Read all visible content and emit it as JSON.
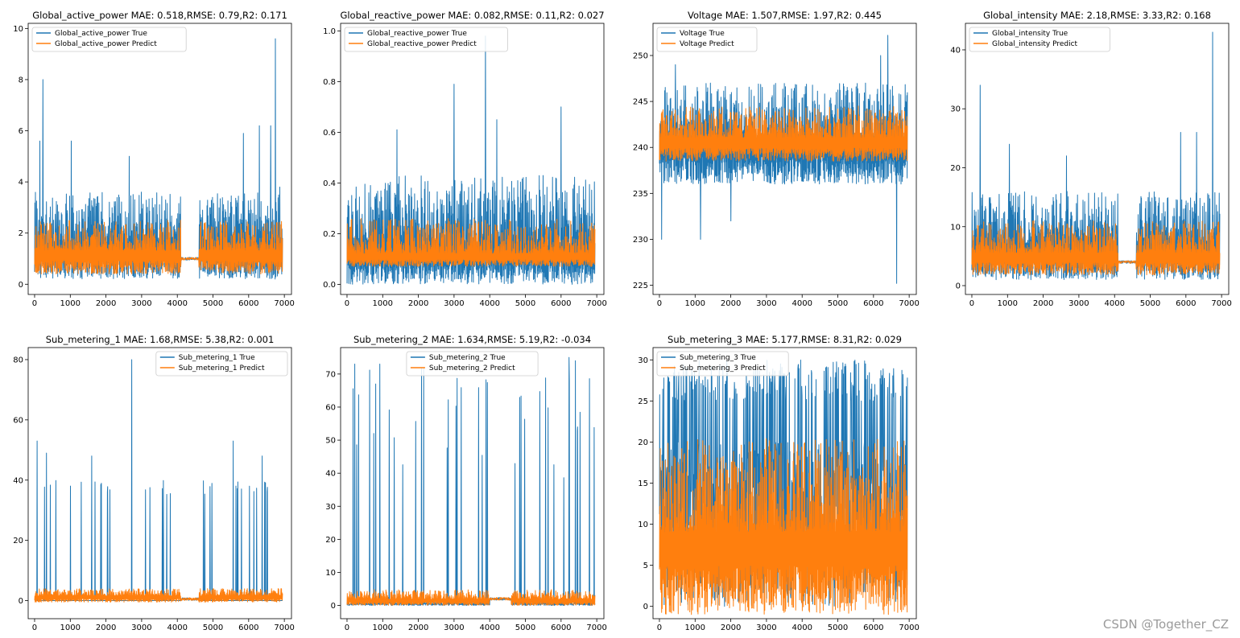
{
  "figure": {
    "watermark": "CSDN @Together_CZ"
  },
  "colors": {
    "true": "#1f77b4",
    "predict": "#ff7f0e",
    "frame": "#000000",
    "background": "#ffffff"
  },
  "chart_data": [
    {
      "type": "line",
      "title": "Global_active_power MAE: 0.518,RMSE: 0.79,R2: 0.171",
      "xlim": [
        -180,
        7200
      ],
      "ylim": [
        -0.4,
        10.2
      ],
      "xticks": [
        0,
        1000,
        2000,
        3000,
        4000,
        5000,
        6000,
        7000
      ],
      "yticks": [
        0,
        2,
        4,
        6,
        8,
        10
      ],
      "legend_loc": "upper-left",
      "series": [
        {
          "name": "Global_active_power True",
          "role": "true",
          "profile": {
            "floor": 0.2,
            "base": 1.6,
            "amp": 2.0,
            "spikes": [
              [
                150,
                5.6
              ],
              [
                230,
                8.0
              ],
              [
                1030,
                5.6
              ],
              [
                2650,
                5.0
              ],
              [
                5850,
                5.9
              ],
              [
                6300,
                6.2
              ],
              [
                6620,
                6.2
              ],
              [
                6750,
                9.6
              ],
              [
                6870,
                3.8
              ]
            ]
          }
        },
        {
          "name": "Global_active_power Predict",
          "role": "predict",
          "profile": {
            "floor": 0.4,
            "base": 1.3,
            "amp": 1.2,
            "spikes": []
          }
        }
      ],
      "gaps": [
        [
          4100,
          4600,
          1.0
        ],
        [
          5400,
          5500,
          null
        ]
      ]
    },
    {
      "type": "line",
      "title": "Global_reactive_power MAE: 0.082,RMSE: 0.11,R2: 0.027",
      "xlim": [
        -180,
        7200
      ],
      "ylim": [
        -0.04,
        1.03
      ],
      "xticks": [
        0,
        1000,
        2000,
        3000,
        4000,
        5000,
        6000,
        7000
      ],
      "yticks": [
        0.0,
        0.2,
        0.4,
        0.6,
        0.8,
        1.0
      ],
      "legend_loc": "upper-left",
      "series": [
        {
          "name": "Global_reactive_power True",
          "role": "true",
          "profile": {
            "floor": 0.0,
            "base": 0.15,
            "amp": 0.28,
            "spikes": [
              [
                3880,
                0.98
              ],
              [
                3000,
                0.79
              ],
              [
                6000,
                0.7
              ],
              [
                4200,
                0.65
              ],
              [
                1400,
                0.61
              ]
            ]
          }
        },
        {
          "name": "Global_reactive_power Predict",
          "role": "predict",
          "profile": {
            "floor": 0.07,
            "base": 0.12,
            "amp": 0.14,
            "spikes": []
          }
        }
      ],
      "gaps": [
        [
          4500,
          4600,
          null
        ],
        [
          5400,
          5500,
          null
        ]
      ]
    },
    {
      "type": "line",
      "title": "Voltage MAE: 1.507,RMSE: 1.97,R2: 0.445",
      "xlim": [
        -180,
        7200
      ],
      "ylim": [
        224.0,
        253.5
      ],
      "xticks": [
        0,
        1000,
        2000,
        3000,
        4000,
        5000,
        6000,
        7000
      ],
      "yticks": [
        225,
        230,
        235,
        240,
        245,
        250
      ],
      "legend_loc": "upper-left",
      "series": [
        {
          "name": "Voltage True",
          "role": "true",
          "profile": {
            "floor": 236.0,
            "base": 241.0,
            "amp": 6.0,
            "spikes": [
              [
                60,
                230.0
              ],
              [
                1150,
                230.0
              ],
              [
                2000,
                232.0
              ],
              [
                6650,
                225.2
              ],
              [
                6400,
                252.2
              ],
              [
                6200,
                250.0
              ],
              [
                450,
                249.0
              ]
            ]
          }
        },
        {
          "name": "Voltage Predict",
          "role": "predict",
          "profile": {
            "floor": 238.5,
            "base": 241.0,
            "amp": 3.5,
            "spikes": []
          }
        }
      ],
      "gaps": [
        [
          4500,
          4600,
          null
        ],
        [
          5400,
          5500,
          null
        ]
      ]
    },
    {
      "type": "line",
      "title": "Global_intensity MAE: 2.18,RMSE: 3.33,R2: 0.168",
      "xlim": [
        -180,
        7200
      ],
      "ylim": [
        -1.5,
        44.5
      ],
      "xticks": [
        0,
        1000,
        2000,
        3000,
        4000,
        5000,
        6000,
        7000
      ],
      "yticks": [
        0,
        10,
        20,
        30,
        40
      ],
      "legend_loc": "upper-left",
      "series": [
        {
          "name": "Global_intensity True",
          "role": "true",
          "profile": {
            "floor": 1.0,
            "base": 7.0,
            "amp": 9.0,
            "spikes": [
              [
                230,
                34.0
              ],
              [
                1050,
                24.0
              ],
              [
                2650,
                22.0
              ],
              [
                5850,
                26.0
              ],
              [
                6300,
                26.0
              ],
              [
                6750,
                43.0
              ]
            ]
          }
        },
        {
          "name": "Global_intensity Predict",
          "role": "predict",
          "profile": {
            "floor": 1.8,
            "base": 5.5,
            "amp": 5.5,
            "spikes": []
          }
        }
      ],
      "gaps": [
        [
          4100,
          4600,
          4.0
        ],
        [
          5400,
          5500,
          null
        ]
      ]
    },
    {
      "type": "line",
      "title": "Sub_metering_1 MAE: 1.68,RMSE: 5.38,R2: 0.001",
      "xlim": [
        -180,
        7200
      ],
      "ylim": [
        -6,
        84
      ],
      "xticks": [
        0,
        1000,
        2000,
        3000,
        4000,
        5000,
        6000,
        7000
      ],
      "yticks": [
        0,
        20,
        40,
        60,
        80
      ],
      "legend_loc": "upper-right",
      "series": [
        {
          "name": "Sub_metering_1 True",
          "role": "true",
          "profile": {
            "floor": 0.0,
            "base": 0.0,
            "amp": 0.0,
            "density": 0.05,
            "spikeMin": 35,
            "spikeMax": 40,
            "spikes": [
              [
                2720,
                80.0
              ],
              [
                70,
                53.0
              ],
              [
                330,
                49.0
              ],
              [
                1600,
                48.0
              ],
              [
                5570,
                53.0
              ],
              [
                6380,
                48.0
              ]
            ]
          }
        },
        {
          "name": "Sub_metering_1 Predict",
          "role": "predict",
          "profile": {
            "floor": -0.5,
            "base": 1.5,
            "amp": 2.5,
            "spikes": []
          }
        }
      ],
      "gaps": [
        [
          4100,
          4600,
          0.5
        ]
      ]
    },
    {
      "type": "line",
      "title": "Sub_metering_2 MAE: 1.634,RMSE: 5.19,R2: -0.034",
      "xlim": [
        -180,
        7200
      ],
      "ylim": [
        -4,
        78
      ],
      "xticks": [
        0,
        1000,
        2000,
        3000,
        4000,
        5000,
        6000,
        7000
      ],
      "yticks": [
        0,
        10,
        20,
        30,
        40,
        50,
        60,
        70
      ],
      "legend_loc": "upper-center",
      "series": [
        {
          "name": "Sub_metering_2 True",
          "role": "true",
          "profile": {
            "floor": 0.0,
            "base": 0.5,
            "amp": 1.0,
            "density": 0.035,
            "spikeMin": 35,
            "spikeMax": 74,
            "spikes": [
              [
                220,
                73.0
              ],
              [
                920,
                73.0
              ],
              [
                2150,
                72.0
              ],
              [
                6220,
                75.0
              ],
              [
                6400,
                74.0
              ]
            ]
          }
        },
        {
          "name": "Sub_metering_2 Predict",
          "role": "predict",
          "profile": {
            "floor": 0.0,
            "base": 1.8,
            "amp": 3.0,
            "spikes": []
          }
        }
      ],
      "gaps": [
        [
          4000,
          4600,
          2.0
        ]
      ]
    },
    {
      "type": "line",
      "title": "Sub_metering_3 MAE: 5.177,RMSE: 8.31,R2: 0.029",
      "xlim": [
        -180,
        7200
      ],
      "ylim": [
        -1.5,
        31.5
      ],
      "xticks": [
        0,
        1000,
        2000,
        3000,
        4000,
        5000,
        6000,
        7000
      ],
      "yticks": [
        0,
        5,
        10,
        15,
        20,
        25,
        30
      ],
      "legend_loc": "upper-left",
      "series": [
        {
          "name": "Sub_metering_3 True",
          "role": "true",
          "profile": {
            "floor": 0.0,
            "base": 10.0,
            "amp": 20.0,
            "density": 0.25,
            "spikeMin": 25,
            "spikeMax": 30,
            "spikes": []
          }
        },
        {
          "name": "Sub_metering_3 Predict",
          "role": "predict",
          "profile": {
            "floor": -1.0,
            "base": 9.0,
            "amp": 11.5,
            "spikes": []
          }
        }
      ],
      "gaps": [
        [
          4500,
          4600,
          null
        ],
        [
          5400,
          5500,
          null
        ]
      ]
    }
  ]
}
